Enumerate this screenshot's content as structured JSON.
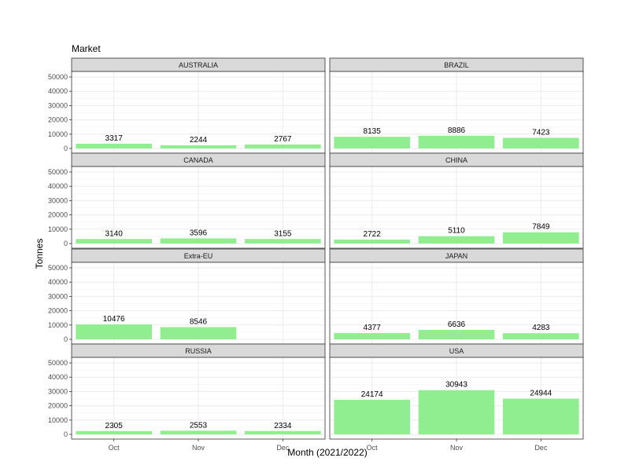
{
  "chart_data": {
    "type": "bar",
    "title": "Market",
    "xlabel": "Month (2021/2022)",
    "ylabel": "Tonnes",
    "categories": [
      "Oct",
      "Nov",
      "Dec"
    ],
    "yticks": [
      0,
      10000,
      20000,
      30000,
      40000,
      50000
    ],
    "ylim": [
      0,
      50000
    ],
    "grid": true,
    "bar_color": "#90EE90",
    "strip_color": "#D9D9D9",
    "panels": [
      {
        "name": "AUSTRALIA",
        "values": [
          3317,
          2244,
          2767
        ]
      },
      {
        "name": "BRAZIL",
        "values": [
          8135,
          8886,
          7423
        ]
      },
      {
        "name": "CANADA",
        "values": [
          3140,
          3596,
          3155
        ]
      },
      {
        "name": "CHINA",
        "values": [
          2722,
          5110,
          7849
        ]
      },
      {
        "name": "Extra-EU",
        "values": [
          10476,
          8546,
          null
        ]
      },
      {
        "name": "JAPAN",
        "values": [
          4377,
          6636,
          4283
        ]
      },
      {
        "name": "RUSSIA",
        "values": [
          2305,
          2553,
          2334
        ]
      },
      {
        "name": "USA",
        "values": [
          24174,
          30943,
          24944
        ]
      }
    ]
  }
}
